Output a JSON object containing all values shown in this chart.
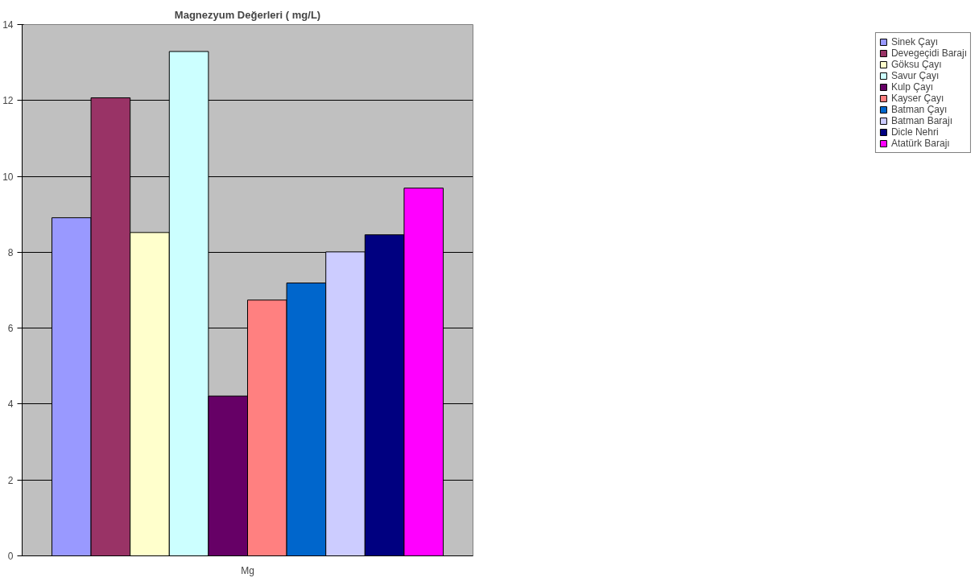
{
  "chart_data": {
    "type": "bar",
    "title": "Magnezyum Değerleri ( mg/L)",
    "categories": [
      "Mg"
    ],
    "series": [
      {
        "name": "Sinek Çayı",
        "color": "#9999ff",
        "values": [
          8.91
        ]
      },
      {
        "name": "Devegeçidi Barajı",
        "color": "#993366",
        "values": [
          12.07
        ]
      },
      {
        "name": "Göksu Çayı",
        "color": "#ffffcc",
        "values": [
          8.52
        ]
      },
      {
        "name": "Savur Çayı",
        "color": "#ccffff",
        "values": [
          13.29
        ]
      },
      {
        "name": "Kulp Çayı",
        "color": "#660066",
        "values": [
          4.21
        ]
      },
      {
        "name": "Kayser Çayı",
        "color": "#ff8080",
        "values": [
          6.74
        ]
      },
      {
        "name": "Batman Çayı",
        "color": "#0066cc",
        "values": [
          7.19
        ]
      },
      {
        "name": "Batman Barajı",
        "color": "#ccccff",
        "values": [
          8.01
        ]
      },
      {
        "name": "Dicle Nehri",
        "color": "#000080",
        "values": [
          8.46
        ]
      },
      {
        "name": "Atatürk Barajı",
        "color": "#ff00ff",
        "values": [
          9.69
        ]
      }
    ],
    "ylim": [
      0,
      14
    ],
    "yticks": [
      0,
      2,
      4,
      6,
      8,
      10,
      12,
      14
    ],
    "grid": "y",
    "legend": "right"
  }
}
